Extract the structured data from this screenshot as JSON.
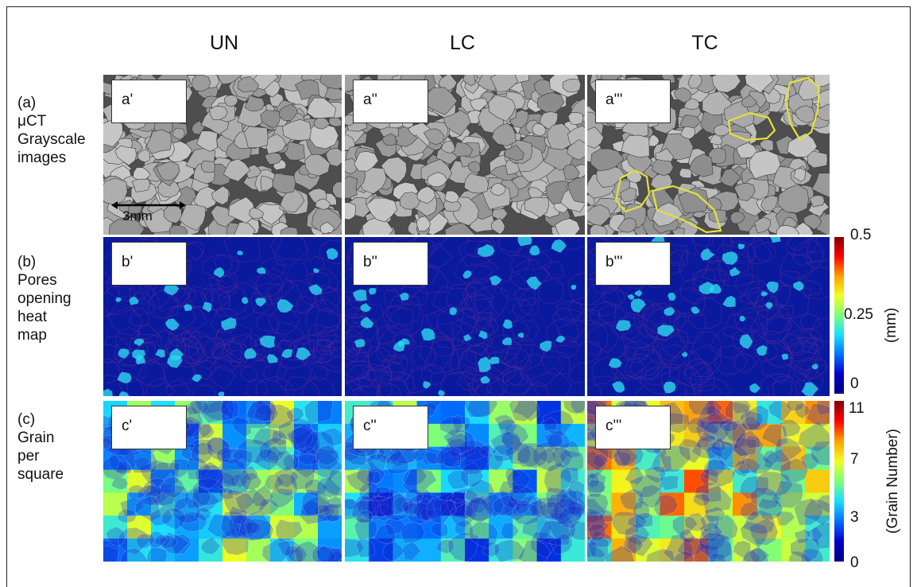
{
  "columns": [
    "UN",
    "LC",
    "TC"
  ],
  "rows": [
    {
      "id": "a",
      "label_lines": [
        "(a)",
        "μCT",
        "Grayscale",
        "images"
      ]
    },
    {
      "id": "b",
      "label_lines": [
        "(b)",
        "Pores",
        "opening",
        "heat",
        "map"
      ]
    },
    {
      "id": "c",
      "label_lines": [
        "(c)",
        "Grain",
        "per",
        "square"
      ]
    }
  ],
  "panel_tags": {
    "a": [
      "a'",
      "a''",
      "a'''"
    ],
    "b": [
      "b'",
      "b''",
      "b'''"
    ],
    "c": [
      "c'",
      "c''",
      "c'''"
    ]
  },
  "scale_bar": "3mm",
  "colorbar_pores": {
    "ticks": [
      "0.5",
      "0.25",
      "0"
    ],
    "unit": "(mm)"
  },
  "colorbar_grains": {
    "ticks": [
      "11",
      "7",
      "3",
      "0"
    ],
    "unit": "(Grain Number)"
  },
  "colors": {
    "pore_low": "#0a1a9e",
    "pore_high": "#2cd8f0",
    "outline": "#e6e03a"
  }
}
